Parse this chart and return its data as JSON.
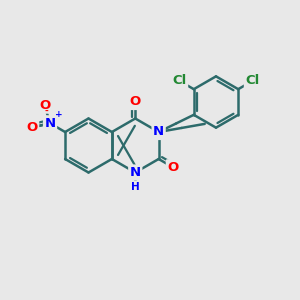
{
  "bg_color": "#e8e8e8",
  "bond_color": "#2d6b6b",
  "bond_width": 1.8,
  "dbo": 0.055,
  "atom_colors": {
    "O": "#ff0000",
    "N": "#0000ff",
    "Cl": "#228833",
    "H": "#0000ff"
  },
  "fs": 9.5,
  "fs_s": 7.5
}
